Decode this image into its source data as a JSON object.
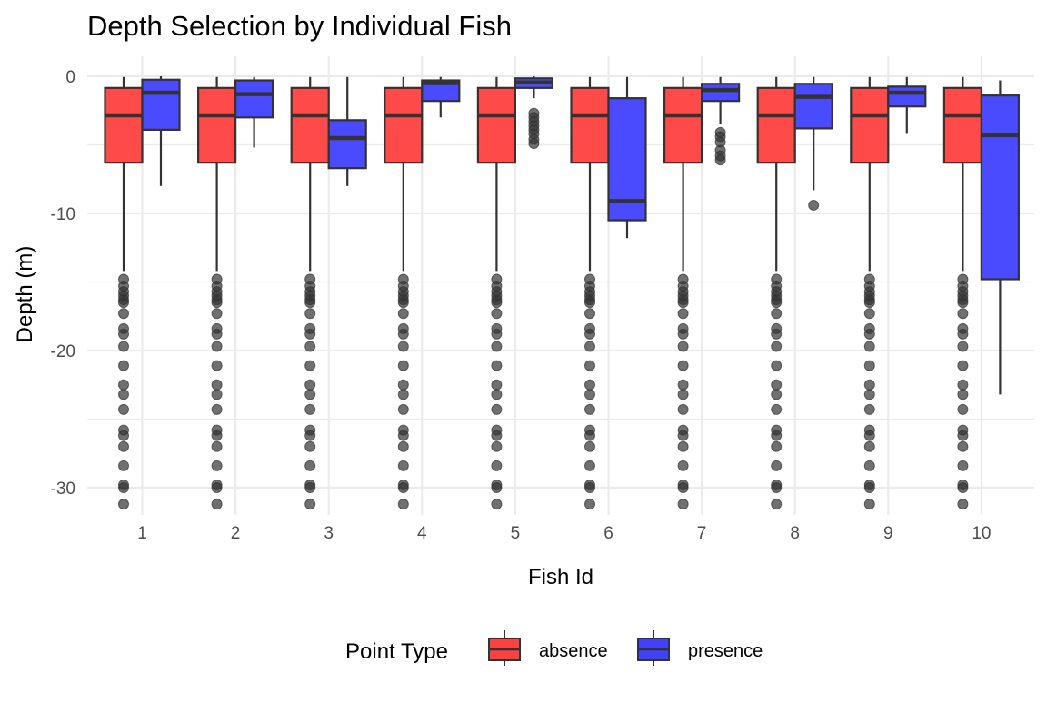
{
  "chart_data": {
    "type": "boxplot",
    "title": "Depth Selection by Individual Fish",
    "xlabel": "Fish Id",
    "ylabel": "Depth (m)",
    "ylim": [
      -32.5,
      1.2
    ],
    "yticks": [
      0,
      -10,
      -20,
      -30
    ],
    "ytick_labels": [
      "0",
      "-10",
      "-20",
      "-30"
    ],
    "categories": [
      "1",
      "2",
      "3",
      "4",
      "5",
      "6",
      "7",
      "8",
      "9",
      "10"
    ],
    "legend": {
      "title": "Point Type",
      "position": "bottom",
      "entries": [
        "absence",
        "presence"
      ]
    },
    "series": [
      {
        "name": "absence",
        "color": "#FF4040",
        "boxes": [
          {
            "upper": -0.05,
            "q3": -0.85,
            "median": -2.85,
            "q1": -6.3,
            "lower": -14.2,
            "outliers": [
              -14.8,
              -15.3,
              -15.7,
              -16.0,
              -16.3,
              -16.5,
              -17.3,
              -18.4,
              -18.8,
              -19.7,
              -21.1,
              -22.5,
              -23.2,
              -24.3,
              -25.8,
              -26.2,
              -27.0,
              -28.4,
              -29.8,
              -30.0,
              -31.2
            ]
          },
          {
            "upper": -0.05,
            "q3": -0.85,
            "median": -2.85,
            "q1": -6.3,
            "lower": -14.2,
            "outliers": [
              -14.8,
              -15.3,
              -15.7,
              -16.0,
              -16.3,
              -16.5,
              -17.3,
              -18.4,
              -18.8,
              -19.7,
              -21.1,
              -22.5,
              -23.2,
              -24.3,
              -25.8,
              -26.2,
              -27.0,
              -28.4,
              -29.8,
              -30.0,
              -31.2
            ]
          },
          {
            "upper": -0.05,
            "q3": -0.85,
            "median": -2.85,
            "q1": -6.3,
            "lower": -14.2,
            "outliers": [
              -14.8,
              -15.3,
              -15.7,
              -16.0,
              -16.3,
              -16.5,
              -17.3,
              -18.4,
              -18.8,
              -19.7,
              -21.1,
              -22.5,
              -23.2,
              -24.3,
              -25.8,
              -26.2,
              -27.0,
              -28.4,
              -29.8,
              -30.0,
              -31.2
            ]
          },
          {
            "upper": -0.05,
            "q3": -0.85,
            "median": -2.85,
            "q1": -6.3,
            "lower": -14.2,
            "outliers": [
              -14.8,
              -15.3,
              -15.7,
              -16.0,
              -16.3,
              -16.5,
              -17.3,
              -18.4,
              -18.8,
              -19.7,
              -21.1,
              -22.5,
              -23.2,
              -24.3,
              -25.8,
              -26.2,
              -27.0,
              -28.4,
              -29.8,
              -30.0,
              -31.2
            ]
          },
          {
            "upper": -0.05,
            "q3": -0.85,
            "median": -2.85,
            "q1": -6.3,
            "lower": -14.2,
            "outliers": [
              -14.8,
              -15.3,
              -15.7,
              -16.0,
              -16.3,
              -16.5,
              -17.3,
              -18.4,
              -18.8,
              -19.7,
              -21.1,
              -22.5,
              -23.2,
              -24.3,
              -25.8,
              -26.2,
              -27.0,
              -28.4,
              -29.8,
              -30.0,
              -31.2
            ]
          },
          {
            "upper": -0.05,
            "q3": -0.85,
            "median": -2.85,
            "q1": -6.3,
            "lower": -14.2,
            "outliers": [
              -14.8,
              -15.3,
              -15.7,
              -16.0,
              -16.3,
              -16.5,
              -17.3,
              -18.4,
              -18.8,
              -19.7,
              -21.1,
              -22.5,
              -23.2,
              -24.3,
              -25.8,
              -26.2,
              -27.0,
              -28.4,
              -29.8,
              -30.0,
              -31.2
            ]
          },
          {
            "upper": -0.05,
            "q3": -0.85,
            "median": -2.85,
            "q1": -6.3,
            "lower": -14.2,
            "outliers": [
              -14.8,
              -15.3,
              -15.7,
              -16.0,
              -16.3,
              -16.5,
              -17.3,
              -18.4,
              -18.8,
              -19.7,
              -21.1,
              -22.5,
              -23.2,
              -24.3,
              -25.8,
              -26.2,
              -27.0,
              -28.4,
              -29.8,
              -30.0,
              -31.2
            ]
          },
          {
            "upper": -0.05,
            "q3": -0.85,
            "median": -2.85,
            "q1": -6.3,
            "lower": -14.2,
            "outliers": [
              -14.8,
              -15.3,
              -15.7,
              -16.0,
              -16.3,
              -16.5,
              -17.3,
              -18.4,
              -18.8,
              -19.7,
              -21.1,
              -22.5,
              -23.2,
              -24.3,
              -25.8,
              -26.2,
              -27.0,
              -28.4,
              -29.8,
              -30.0,
              -31.2
            ]
          },
          {
            "upper": -0.05,
            "q3": -0.85,
            "median": -2.85,
            "q1": -6.3,
            "lower": -14.2,
            "outliers": [
              -14.8,
              -15.3,
              -15.7,
              -16.0,
              -16.3,
              -16.5,
              -17.3,
              -18.4,
              -18.8,
              -19.7,
              -21.1,
              -22.5,
              -23.2,
              -24.3,
              -25.8,
              -26.2,
              -27.0,
              -28.4,
              -29.8,
              -30.0,
              -31.2
            ]
          },
          {
            "upper": -0.05,
            "q3": -0.85,
            "median": -2.85,
            "q1": -6.3,
            "lower": -14.2,
            "outliers": [
              -14.8,
              -15.3,
              -15.7,
              -16.0,
              -16.3,
              -16.5,
              -17.3,
              -18.4,
              -18.8,
              -19.7,
              -21.1,
              -22.5,
              -23.2,
              -24.3,
              -25.8,
              -26.2,
              -27.0,
              -28.4,
              -29.8,
              -30.0,
              -31.2
            ]
          }
        ]
      },
      {
        "name": "presence",
        "color": "#4040FF",
        "boxes": [
          {
            "upper": 0.0,
            "q3": -0.25,
            "median": -1.2,
            "q1": -3.9,
            "lower": -8.0,
            "outliers": []
          },
          {
            "upper": -0.05,
            "q3": -0.3,
            "median": -1.3,
            "q1": -3.0,
            "lower": -5.2,
            "outliers": []
          },
          {
            "upper": -0.05,
            "q3": -3.2,
            "median": -4.5,
            "q1": -6.7,
            "lower": -8.0,
            "outliers": []
          },
          {
            "upper": -0.05,
            "q3": -0.3,
            "median": -0.5,
            "q1": -1.8,
            "lower": -3.0,
            "outliers": []
          },
          {
            "upper": 0.0,
            "q3": -0.15,
            "median": -0.45,
            "q1": -0.85,
            "lower": -1.6,
            "outliers": [
              -2.7,
              -3.0,
              -3.3,
              -3.6,
              -3.9,
              -4.2,
              -4.6,
              -4.9
            ]
          },
          {
            "upper": -0.05,
            "q3": -1.6,
            "median": -9.1,
            "q1": -10.5,
            "lower": -11.8,
            "outliers": []
          },
          {
            "upper": -0.05,
            "q3": -0.55,
            "median": -1.0,
            "q1": -1.8,
            "lower": -3.5,
            "outliers": [
              -4.1,
              -4.4,
              -4.8,
              -5.4,
              -5.8,
              -6.1
            ]
          },
          {
            "upper": -0.05,
            "q3": -0.55,
            "median": -1.5,
            "q1": -3.8,
            "lower": -8.3,
            "outliers": [
              -9.4
            ]
          },
          {
            "upper": -0.05,
            "q3": -0.75,
            "median": -1.2,
            "q1": -2.2,
            "lower": -4.2,
            "outliers": []
          },
          {
            "upper": -0.3,
            "q3": -1.4,
            "median": -4.3,
            "q1": -14.8,
            "lower": -23.2,
            "outliers": []
          }
        ]
      }
    ]
  }
}
